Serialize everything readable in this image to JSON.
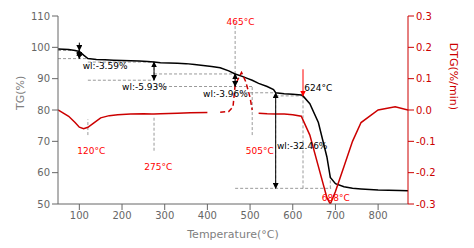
{
  "chart_data": {
    "type": "line",
    "xlabel": "Temperature(°C)",
    "ylabel": "TG(%)",
    "y2label": "DTG(%/min)",
    "xlim": [
      50,
      870
    ],
    "xticks": [
      100,
      200,
      300,
      400,
      500,
      600,
      700,
      800
    ],
    "ylim": [
      50,
      110
    ],
    "yticks": [
      50,
      60,
      70,
      80,
      90,
      100,
      110
    ],
    "y2lim": [
      -0.3,
      0.3
    ],
    "y2ticks": [
      -0.3,
      -0.2,
      -0.1,
      {
        "value": 0.0,
        "label": "0.0"
      },
      0.1,
      0.2,
      0.3
    ],
    "grid": false,
    "series": [
      {
        "color": "#000000",
        "line_style": "solid",
        "x": [
          50,
          75,
          90,
          100,
          110,
          120,
          140,
          160,
          180,
          200,
          220,
          240,
          260,
          275,
          290,
          310,
          330,
          350,
          370,
          390,
          410,
          430,
          450,
          465,
          480,
          495,
          505,
          520,
          540,
          555,
          560,
          580,
          600,
          620,
          624,
          640,
          660,
          680,
          688,
          700,
          720,
          740,
          760,
          800,
          850,
          870
        ],
        "values": [
          99.5,
          99.3,
          99.0,
          98.7,
          97.5,
          96.4,
          96.1,
          96.0,
          95.9,
          95.8,
          95.7,
          95.6,
          95.5,
          95.3,
          95.1,
          95.0,
          94.9,
          94.8,
          94.5,
          94.2,
          93.9,
          93.5,
          92.5,
          91.5,
          90.8,
          90.0,
          89.5,
          88.5,
          87.5,
          86.5,
          85.5,
          85.2,
          85.0,
          84.8,
          84.5,
          82.0,
          76.0,
          65.0,
          58.5,
          56.5,
          55.5,
          55.0,
          54.8,
          54.5,
          54.3,
          54.2
        ]
      },
      {
        "color": "#cc0000",
        "line_style": "solid",
        "axis": "y2",
        "x": [
          50,
          75,
          90,
          100,
          110,
          120,
          135,
          150,
          170,
          190,
          220,
          250,
          270,
          275,
          290,
          310,
          330,
          360,
          400
        ],
        "values": [
          0.0,
          -0.02,
          -0.04,
          -0.055,
          -0.06,
          -0.055,
          -0.04,
          -0.025,
          -0.018,
          -0.015,
          -0.013,
          -0.012,
          -0.013,
          -0.013,
          -0.012,
          -0.011,
          -0.01,
          -0.009,
          -0.008
        ]
      },
      {
        "color": "#cc0000",
        "line_style": "dashed",
        "axis": "y2",
        "x": [
          430,
          450,
          460,
          465,
          480,
          490,
          500,
          505
        ],
        "values": [
          -0.007,
          -0.005,
          0.01,
          0.08,
          0.12,
          0.09,
          0.04,
          0.0
        ]
      },
      {
        "color": "#cc0000",
        "line_style": "solid",
        "axis": "y2",
        "x": [
          520,
          540,
          560,
          580,
          600,
          620,
          640,
          660,
          680,
          688,
          700,
          720,
          740,
          760,
          800,
          840,
          870
        ],
        "values": [
          -0.01,
          -0.012,
          -0.013,
          -0.013,
          -0.015,
          -0.02,
          -0.08,
          -0.18,
          -0.28,
          -0.3,
          -0.26,
          -0.18,
          -0.1,
          -0.04,
          0.0,
          0.01,
          0.0
        ]
      }
    ],
    "ref_lines": [
      {
        "x": [
          50,
          100
        ],
        "y": [
          99.0,
          99.0
        ],
        "color": "gray"
      },
      {
        "x": [
          50,
          120
        ],
        "y": [
          96.4,
          96.4
        ],
        "color": "gray"
      },
      {
        "x": [
          100,
          100
        ],
        "y": [
          96.4,
          99.0
        ],
        "color": "gray"
      },
      {
        "x": [
          120,
          275
        ],
        "y": [
          95.3,
          95.3
        ],
        "color": "gray"
      },
      {
        "x": [
          120,
          275
        ],
        "y": [
          89.5,
          89.5
        ],
        "color": "gray"
      },
      {
        "x": [
          275,
          275
        ],
        "y": [
          89.5,
          95.3
        ],
        "color": "gray"
      },
      {
        "x": [
          275,
          465
        ],
        "y": [
          91.5,
          91.5
        ],
        "color": "gray"
      },
      {
        "x": [
          275,
          505
        ],
        "y": [
          87.5,
          87.5
        ],
        "color": "gray"
      },
      {
        "x": [
          465,
          465
        ],
        "y": [
          87.5,
          91.5
        ],
        "color": "gray"
      },
      {
        "x": [
          465,
          560
        ],
        "y": [
          85.5,
          85.5
        ],
        "color": "gray"
      },
      {
        "x": [
          465,
          690
        ],
        "y": [
          55.0,
          55.0
        ],
        "color": "gray"
      },
      {
        "x": [
          560,
          560
        ],
        "y": [
          55.0,
          85.5
        ],
        "color": "gray"
      },
      {
        "x": [
          560,
          624
        ],
        "y": [
          84.5,
          84.5
        ],
        "color": "gray"
      },
      {
        "x": [
          624,
          624
        ],
        "y": [
          55.0,
          84.5
        ],
        "color": "gray"
      },
      {
        "x": [
          120,
          120
        ],
        "y": [
          72,
          77
        ],
        "color": "gray"
      },
      {
        "x": [
          275,
          275
        ],
        "y": [
          67,
          78
        ],
        "color": "gray"
      },
      {
        "x": [
          465,
          465
        ],
        "y": [
          91.5,
          108
        ],
        "color": "gray"
      },
      {
        "x": [
          505,
          505
        ],
        "y": [
          72,
          87.5
        ],
        "color": "gray"
      },
      {
        "x": [
          688,
          688
        ],
        "y": [
          55.0,
          59
        ],
        "color": "gray"
      }
    ],
    "arrows": [
      {
        "x": [
          100,
          100
        ],
        "y": [
          99.0,
          96.4
        ],
        "color": "black",
        "marker": "double"
      },
      {
        "x": [
          275,
          275
        ],
        "y": [
          95.3,
          89.5
        ],
        "color": "black",
        "marker": "double"
      },
      {
        "x": [
          465,
          465
        ],
        "y": [
          91.5,
          87.5
        ],
        "color": "black",
        "marker": "double"
      },
      {
        "x": [
          560,
          560
        ],
        "y": [
          85.5,
          55.0
        ],
        "color": "black",
        "marker": "double"
      },
      {
        "x": [
          624,
          624
        ],
        "y": [
          93,
          84.5
        ],
        "color": "red",
        "marker": "single"
      },
      {
        "x": [
          100,
          100
        ],
        "y": [
          101.5,
          99.0
        ],
        "color": "black",
        "marker": "single"
      },
      {
        "x": [
          100,
          100
        ],
        "y": [
          98.8,
          96.8
        ],
        "color": "black",
        "marker": "single"
      }
    ],
    "annotations": [
      {
        "text": "wl:-3.59%",
        "x": 108,
        "y": 93.0,
        "color": "black"
      },
      {
        "text": "wl:-5.93%",
        "x": 200,
        "y": 86.5,
        "color": "black"
      },
      {
        "text": "wl:-3.96%",
        "x": 390,
        "y": 84.0,
        "color": "black"
      },
      {
        "text": "wl:-32.46%",
        "x": 563,
        "y": 67.5,
        "color": "black"
      },
      {
        "text": "624°C",
        "x": 627,
        "y": 86,
        "color": "black"
      },
      {
        "text": "120°C",
        "x": 95,
        "y": 66,
        "color": "red"
      },
      {
        "text": "275°C",
        "x": 252,
        "y": 61,
        "color": "red"
      },
      {
        "text": "465°C",
        "x": 445,
        "y": 107,
        "color": "red"
      },
      {
        "text": "505°C",
        "x": 490,
        "y": 66,
        "color": "red"
      },
      {
        "text": "688°C",
        "x": 668,
        "y": 51,
        "color": "red"
      }
    ]
  }
}
